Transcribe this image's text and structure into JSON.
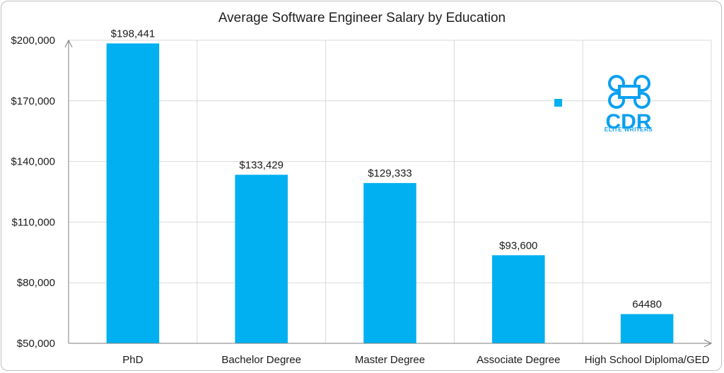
{
  "chart_data": {
    "type": "bar",
    "title": "Average Software Engineer Salary by Education",
    "categories": [
      "PhD",
      "Bachelor Degree",
      "Master Degree",
      "Associate Degree",
      "High School Diploma/GED"
    ],
    "values": [
      198441,
      133429,
      129333,
      93600,
      64480
    ],
    "data_labels": [
      "$198,441",
      "$133,429",
      "$129,333",
      "$93,600",
      "64480"
    ],
    "ylim": [
      50000,
      200000
    ],
    "yticks": [
      50000,
      80000,
      110000,
      140000,
      170000,
      200000
    ],
    "ytick_labels": [
      "$50,000",
      "$80,000",
      "$110,000",
      "$140,000",
      "$170,000",
      "$200,000"
    ],
    "xlabel": "",
    "ylabel": "",
    "grid": true,
    "colors": {
      "bar": "#00b0f0",
      "grid": "#d9d9d9",
      "axis": "#7f7f7f"
    },
    "legend_marker": {
      "color": "#00b0f0",
      "position": "top-right"
    }
  },
  "logo": {
    "icon": "cdr-logo-icon",
    "text": "CDR",
    "subtext": "ELITE WRITERS"
  }
}
